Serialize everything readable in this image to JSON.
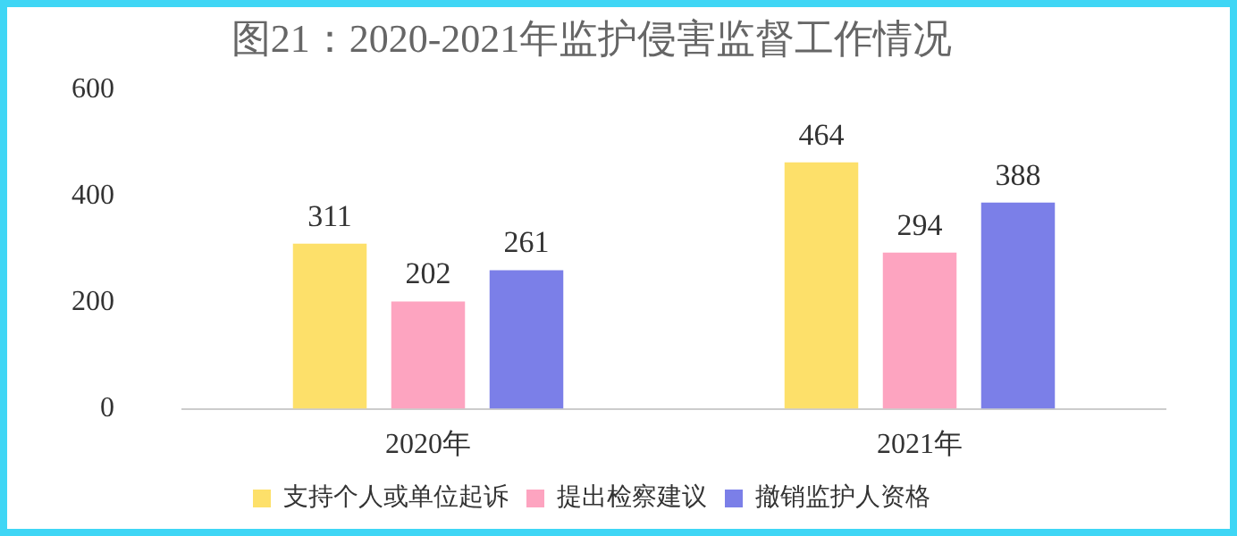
{
  "chart_data": {
    "type": "bar",
    "title": "图21：2020-2021年监护侵害监督工作情况",
    "categories": [
      "2020年",
      "2021年"
    ],
    "series": [
      {
        "name": "支持个人或单位起诉",
        "color": "#fde06a",
        "values": [
          311,
          464
        ]
      },
      {
        "name": "提出检察建议",
        "color": "#fda4c0",
        "values": [
          202,
          294
        ]
      },
      {
        "name": "撤销监护人资格",
        "color": "#7b7fe8",
        "values": [
          261,
          388
        ]
      }
    ],
    "ylim": [
      0,
      600
    ],
    "yticks": [
      0,
      200,
      400,
      600
    ],
    "grid": false,
    "legend": "bottom",
    "data_labels": true
  }
}
